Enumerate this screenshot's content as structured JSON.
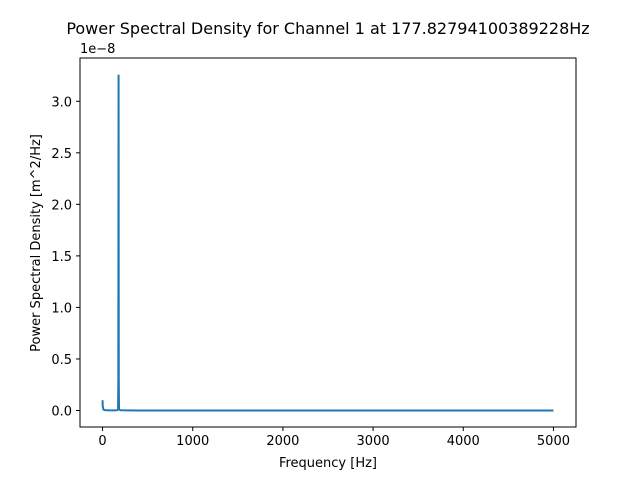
{
  "chart_data": {
    "type": "line",
    "title": "Power Spectral Density for Channel 1 at 177.82794100389228Hz",
    "xlabel": "Frequency [Hz]",
    "ylabel": "Power Spectral Density [m^2/Hz]",
    "y_offset_label": "1e−8",
    "xlim": [
      -250,
      5250
    ],
    "ylim": [
      -0.16,
      3.42
    ],
    "y_scale_factor": 1e-08,
    "x_ticks": [
      0,
      1000,
      2000,
      3000,
      4000,
      5000
    ],
    "x_tick_labels": [
      "0",
      "1000",
      "2000",
      "3000",
      "4000",
      "5000"
    ],
    "y_ticks": [
      0.0,
      0.5,
      1.0,
      1.5,
      2.0,
      2.5,
      3.0
    ],
    "y_tick_labels": [
      "0.0",
      "0.5",
      "1.0",
      "1.5",
      "2.0",
      "2.5",
      "3.0"
    ],
    "grid": false,
    "legend": "none",
    "series": [
      {
        "color": "#1f77b4",
        "x": [
          0,
          2,
          10,
          20,
          40,
          80,
          120,
          160,
          172,
          175,
          176,
          177.8,
          179,
          180,
          183,
          200,
          400,
          1000,
          2000,
          3000,
          4000,
          5000
        ],
        "y": [
          0.1,
          0.04,
          0.01,
          0.005,
          0.002,
          0.001,
          0.001,
          0.002,
          0.01,
          0.3,
          1.5,
          3.25,
          1.5,
          0.3,
          0.01,
          0.002,
          0.0005,
          0.0002,
          0.0001,
          0.0001,
          0.0001,
          0.0001
        ]
      }
    ]
  }
}
